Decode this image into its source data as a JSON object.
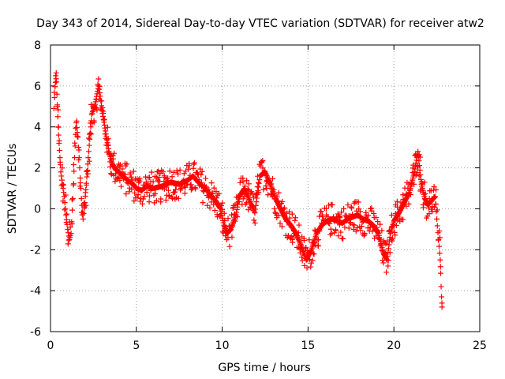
{
  "chart_data": {
    "type": "scatter",
    "title": "Day 343 of 2014, Sidereal Day-to-day VTEC variation (SDTVAR) for receiver atw2",
    "xlabel": "GPS time / hours",
    "ylabel": "SDTVAR / TECUs",
    "xlim": [
      0,
      25
    ],
    "ylim": [
      -6,
      8
    ],
    "xticks": [
      0,
      5,
      10,
      15,
      20,
      25
    ],
    "yticks": [
      -6,
      -4,
      -2,
      0,
      2,
      4,
      6,
      8
    ],
    "grid": true,
    "marker": "+",
    "series": [
      {
        "name": "SDTVAR",
        "color": "#ff0000",
        "x": [
          0.2,
          0.3,
          0.35,
          0.4,
          0.45,
          0.5,
          0.55,
          0.6,
          0.7,
          0.8,
          0.9,
          1.0,
          1.1,
          1.2,
          1.3,
          1.4,
          1.5,
          1.6,
          1.7,
          1.8,
          1.9,
          2.0,
          2.2,
          2.4,
          2.6,
          2.8,
          2.9,
          3.0,
          3.2,
          3.4,
          3.6,
          3.8,
          4.0,
          4.2,
          4.5,
          4.8,
          5.0,
          5.3,
          5.6,
          6.0,
          6.5,
          7.0,
          7.5,
          8.0,
          8.3,
          8.6,
          9.0,
          9.3,
          9.6,
          9.9,
          10.1,
          10.3,
          10.5,
          10.8,
          11.0,
          11.3,
          11.6,
          11.9,
          12.2,
          12.5,
          12.8,
          13.1,
          13.4,
          13.7,
          14.0,
          14.3,
          14.6,
          14.9,
          15.2,
          15.5,
          15.8,
          16.1,
          16.4,
          16.7,
          17.0,
          17.3,
          17.6,
          17.9,
          18.2,
          18.5,
          18.8,
          19.1,
          19.4,
          19.6,
          19.8,
          20.0,
          20.3,
          20.6,
          20.9,
          21.2,
          21.4,
          21.6,
          21.8,
          22.0,
          22.2,
          22.4,
          22.5,
          22.6,
          22.7,
          22.75,
          22.8
        ],
        "y": [
          4.9,
          6.5,
          6.2,
          5.0,
          4.0,
          3.2,
          2.5,
          1.8,
          1.2,
          0.6,
          -0.3,
          -1.0,
          -1.5,
          -1.2,
          0.5,
          2.5,
          4.2,
          3.5,
          2.0,
          0.5,
          -0.5,
          0.3,
          2.5,
          4.6,
          5.1,
          6.0,
          5.5,
          4.8,
          3.8,
          2.8,
          2.2,
          1.9,
          1.8,
          1.6,
          1.4,
          1.2,
          1.0,
          0.9,
          1.1,
          1.0,
          1.1,
          1.3,
          1.2,
          1.4,
          1.6,
          1.3,
          1.0,
          0.7,
          0.4,
          0.0,
          -0.8,
          -1.2,
          -1.0,
          -0.3,
          0.6,
          1.0,
          0.4,
          -0.2,
          1.6,
          1.8,
          1.2,
          0.5,
          0.0,
          -0.5,
          -0.8,
          -1.2,
          -1.8,
          -2.5,
          -2.0,
          -1.2,
          -0.8,
          -0.6,
          -0.5,
          -0.6,
          -0.7,
          -0.5,
          -0.4,
          -0.3,
          -0.5,
          -0.6,
          -0.8,
          -1.2,
          -2.2,
          -2.5,
          -1.2,
          -0.6,
          -0.2,
          0.3,
          0.8,
          1.8,
          2.8,
          1.2,
          0.5,
          0.2,
          0.4,
          0.6,
          -0.5,
          -1.5,
          -2.5,
          -3.8,
          -4.8
        ]
      }
    ]
  }
}
